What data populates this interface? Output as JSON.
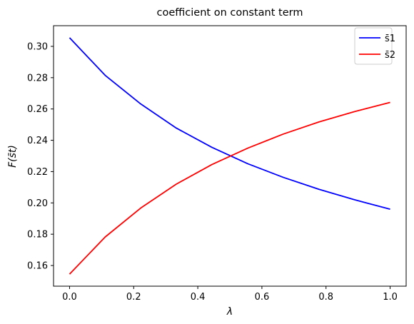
{
  "chart_data": {
    "type": "line",
    "title": "coefficient on constant term",
    "xlabel": "λ",
    "ylabel": "F(s̄t)",
    "xlim": [
      -0.05,
      1.05
    ],
    "ylim": [
      0.1468,
      0.3132
    ],
    "x_ticks": [
      0.0,
      0.2,
      0.4,
      0.6,
      0.8,
      1.0
    ],
    "x_tick_labels": [
      "0.0",
      "0.2",
      "0.4",
      "0.6",
      "0.8",
      "1.0"
    ],
    "y_ticks": [
      0.16,
      0.18,
      0.2,
      0.22,
      0.24,
      0.26,
      0.28,
      0.3
    ],
    "y_tick_labels": [
      "0.16",
      "0.18",
      "0.20",
      "0.22",
      "0.24",
      "0.26",
      "0.28",
      "0.30"
    ],
    "grid": false,
    "legend_position": "top-right",
    "x": [
      0.0,
      0.111,
      0.222,
      0.333,
      0.444,
      0.556,
      0.667,
      0.778,
      0.889,
      1.0
    ],
    "series": [
      {
        "name": "s̄1",
        "color": "#0000ff",
        "values": [
          0.3055,
          0.2815,
          0.2632,
          0.2478,
          0.2355,
          0.225,
          0.2163,
          0.2087,
          0.202,
          0.196
        ]
      },
      {
        "name": "s̄2",
        "color": "#ff0000",
        "values": [
          0.1545,
          0.1782,
          0.1967,
          0.212,
          0.2245,
          0.235,
          0.244,
          0.2517,
          0.2583,
          0.2642
        ]
      }
    ]
  }
}
